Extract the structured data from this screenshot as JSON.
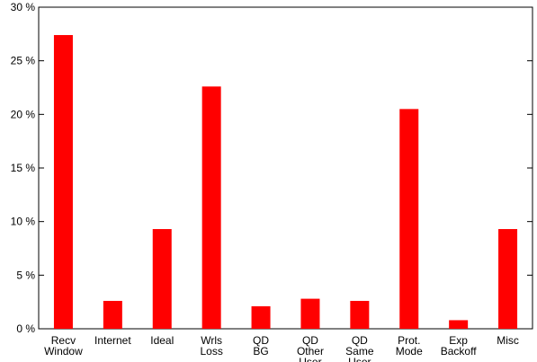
{
  "chart_data": {
    "type": "bar",
    "categories": [
      [
        "Recv",
        "Window"
      ],
      [
        "Internet"
      ],
      [
        "Ideal"
      ],
      [
        "Wrls",
        "Loss"
      ],
      [
        "QD",
        "BG"
      ],
      [
        "QD",
        "Other",
        "User"
      ],
      [
        "QD",
        "Same",
        "User"
      ],
      [
        "Prot.",
        "Mode"
      ],
      [
        "Exp",
        "Backoff"
      ],
      [
        "Misc"
      ]
    ],
    "values": [
      27.4,
      2.6,
      9.3,
      22.6,
      2.1,
      2.8,
      2.6,
      20.5,
      0.8,
      9.3
    ],
    "ylim": [
      0,
      30
    ],
    "yticks": [
      0,
      5,
      10,
      15,
      20,
      25,
      30
    ],
    "ytick_labels": [
      "0 %",
      "5 %",
      "10 %",
      "15 %",
      "20 %",
      "25 %",
      "30 %"
    ],
    "bar_color": "#ff0000",
    "grid": false,
    "title": "",
    "xlabel": "",
    "ylabel": ""
  }
}
